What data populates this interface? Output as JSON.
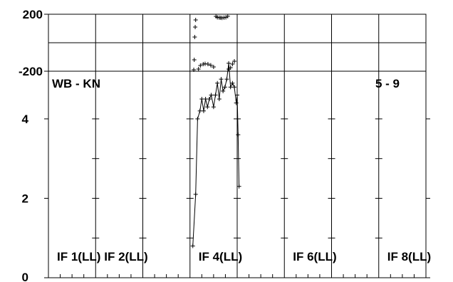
{
  "chart_data": {
    "type": "scatter",
    "baseline_label": "WB - KN",
    "time_label": "5 - 9",
    "if_labels": [
      {
        "index": 0,
        "text": "IF 1(LL)"
      },
      {
        "index": 1,
        "text": "IF 2(LL)"
      },
      {
        "index": 3,
        "text": "IF 4(LL)"
      },
      {
        "index": 5,
        "text": "IF 6(LL)"
      },
      {
        "index": 7,
        "text": "IF 8(LL)"
      }
    ],
    "if_count": 8,
    "phase_panel": {
      "ylim": [
        -200,
        200
      ],
      "tick_labels": [
        "200",
        "-200"
      ],
      "points": [
        [
          3.08,
          -190
        ],
        [
          3.09,
          -120
        ],
        [
          3.1,
          40
        ],
        [
          3.11,
          110
        ],
        [
          3.12,
          160
        ],
        [
          3.18,
          -185
        ],
        [
          3.22,
          -160
        ],
        [
          3.28,
          -150
        ],
        [
          3.32,
          -148
        ],
        [
          3.38,
          -150
        ],
        [
          3.44,
          -158
        ],
        [
          3.5,
          -170
        ],
        [
          3.55,
          185
        ],
        [
          3.58,
          178
        ],
        [
          3.62,
          176
        ],
        [
          3.65,
          175
        ],
        [
          3.68,
          174
        ],
        [
          3.72,
          176
        ],
        [
          3.76,
          178
        ],
        [
          3.8,
          186
        ],
        [
          3.82,
          -185
        ],
        [
          3.86,
          -175
        ],
        [
          3.9,
          -150
        ],
        [
          3.94,
          -130
        ]
      ]
    },
    "amp_panel": {
      "ylim": [
        0,
        5.2
      ],
      "tick_labels": [
        "4",
        "2",
        "0"
      ],
      "yticks": [
        4,
        2,
        0
      ],
      "points": [
        [
          3.06,
          0.8
        ],
        [
          3.12,
          2.1
        ],
        [
          3.16,
          4.0
        ],
        [
          3.21,
          4.2
        ],
        [
          3.25,
          4.5
        ],
        [
          3.29,
          4.2
        ],
        [
          3.33,
          4.5
        ],
        [
          3.37,
          4.3
        ],
        [
          3.41,
          4.5
        ],
        [
          3.45,
          4.6
        ],
        [
          3.5,
          4.3
        ],
        [
          3.54,
          4.6
        ],
        [
          3.58,
          4.9
        ],
        [
          3.62,
          4.5
        ],
        [
          3.66,
          5.0
        ],
        [
          3.7,
          4.7
        ],
        [
          3.74,
          4.8
        ],
        [
          3.78,
          5.0
        ],
        [
          3.82,
          5.4
        ],
        [
          3.86,
          4.8
        ],
        [
          3.9,
          4.9
        ],
        [
          3.94,
          4.8
        ],
        [
          3.98,
          4.4
        ],
        [
          4.0,
          4.6
        ],
        [
          4.02,
          3.6
        ],
        [
          4.04,
          2.3
        ]
      ]
    }
  }
}
